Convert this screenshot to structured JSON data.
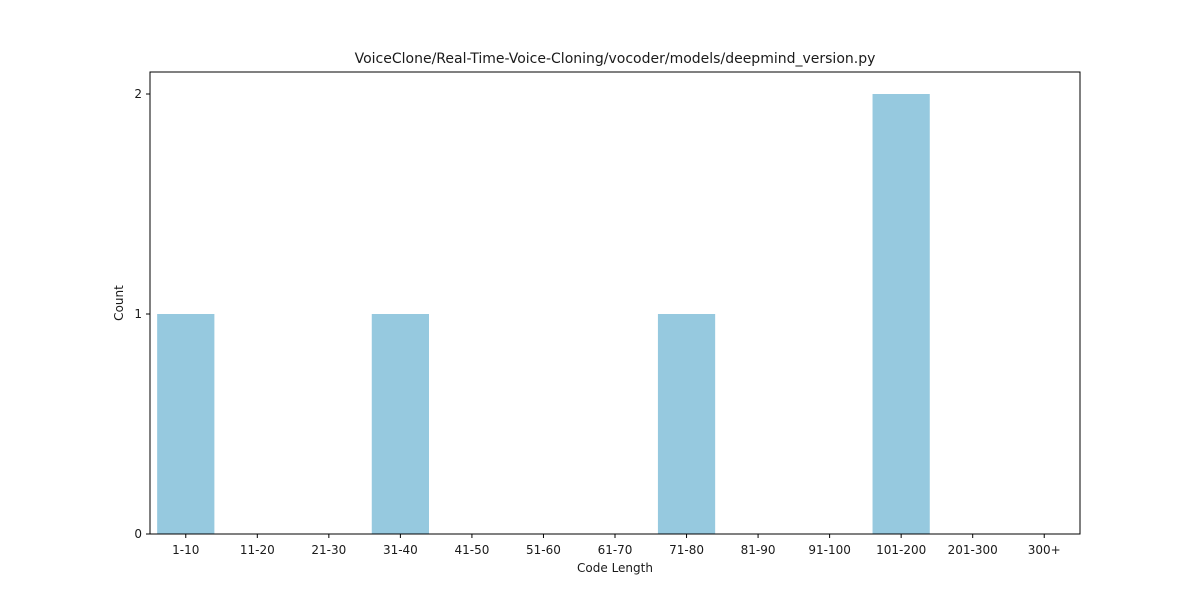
{
  "chart_data": {
    "type": "bar",
    "title": "VoiceClone/Real-Time-Voice-Cloning/vocoder/models/deepmind_version.py",
    "xlabel": "Code Length",
    "ylabel": "Count",
    "categories": [
      "1-10",
      "11-20",
      "21-30",
      "31-40",
      "41-50",
      "51-60",
      "61-70",
      "71-80",
      "81-90",
      "91-100",
      "101-200",
      "201-300",
      "300+"
    ],
    "values": [
      1,
      0,
      0,
      1,
      0,
      0,
      0,
      1,
      0,
      0,
      2,
      0,
      0
    ],
    "ylim": [
      0,
      2.1
    ],
    "yticks": [
      "0",
      "1",
      "2"
    ],
    "grid": false,
    "bar_color": "#96c9df"
  }
}
